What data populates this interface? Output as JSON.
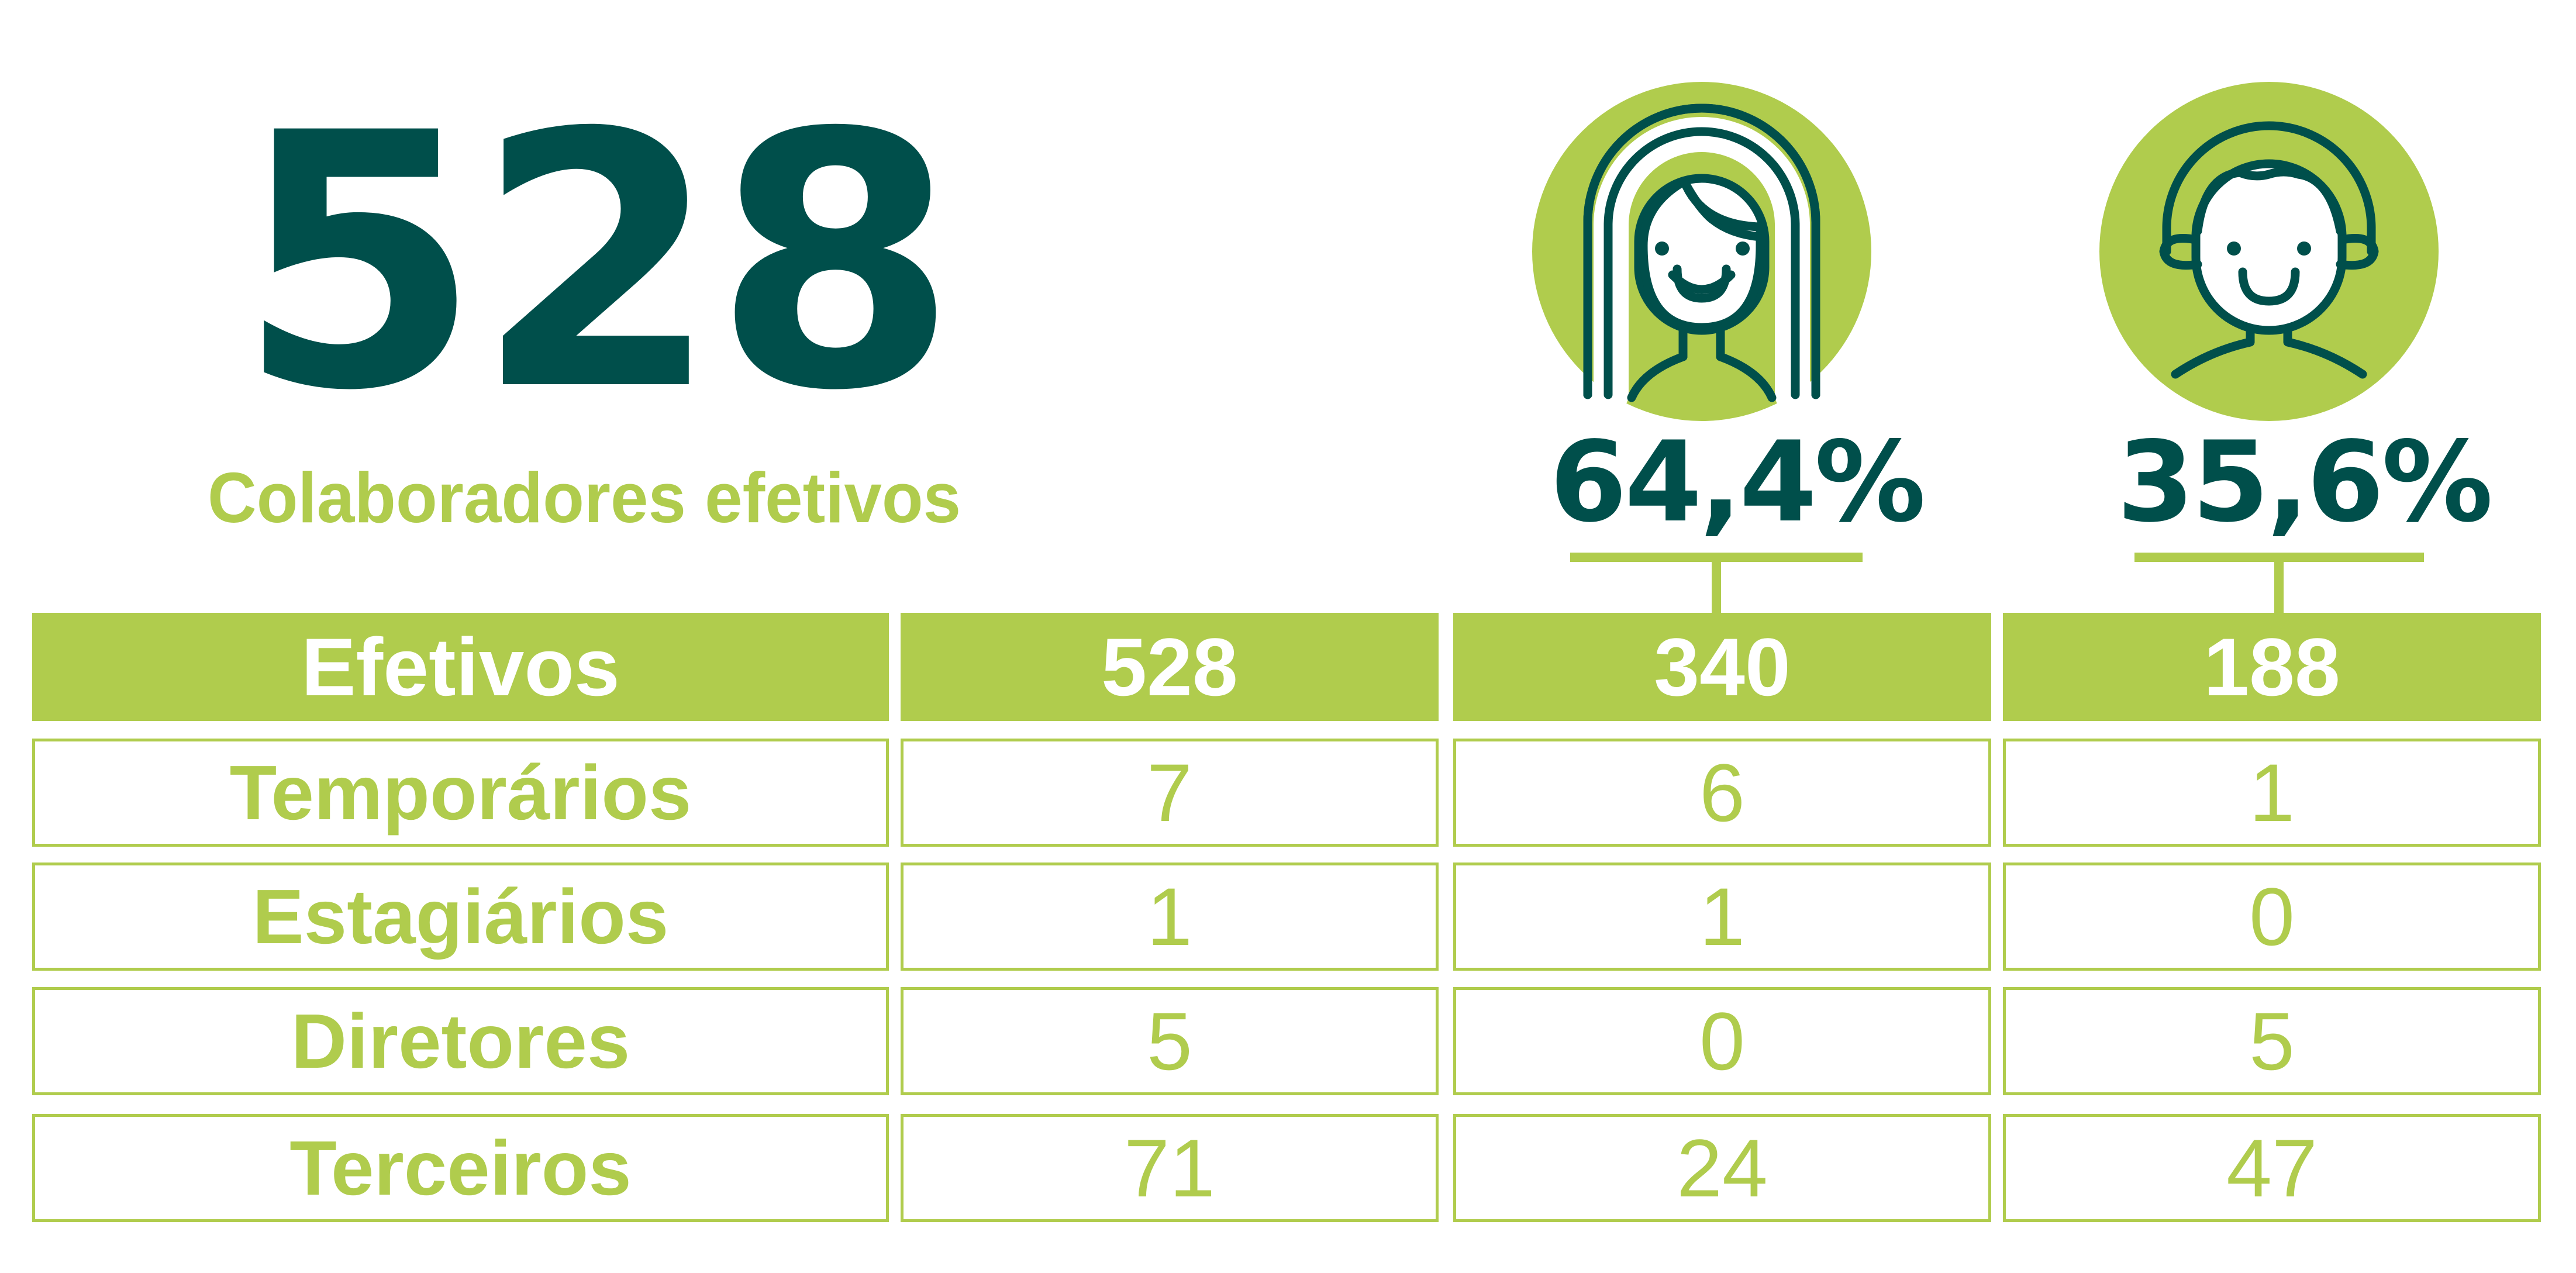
{
  "headline": {
    "total": "528",
    "subtitle": "Colaboradores efetivos"
  },
  "genders": [
    {
      "icon": "woman-face-icon",
      "percentage": "64,4%"
    },
    {
      "icon": "man-face-icon",
      "percentage": "35,6%"
    }
  ],
  "table": {
    "rows": [
      {
        "label": "Efetivos",
        "total": "528",
        "women": "340",
        "men": "188"
      },
      {
        "label": "Temporários",
        "total": "7",
        "women": "6",
        "men": "1"
      },
      {
        "label": "Estagiários",
        "total": "1",
        "women": "1",
        "men": "0"
      },
      {
        "label": "Diretores",
        "total": "5",
        "women": "0",
        "men": "5"
      },
      {
        "label": "Terceiros",
        "total": "71",
        "women": "24",
        "men": "47"
      }
    ]
  },
  "colors": {
    "dark_teal": "#004f4b",
    "lime_green": "#b0cc4d",
    "white": "#ffffff"
  }
}
